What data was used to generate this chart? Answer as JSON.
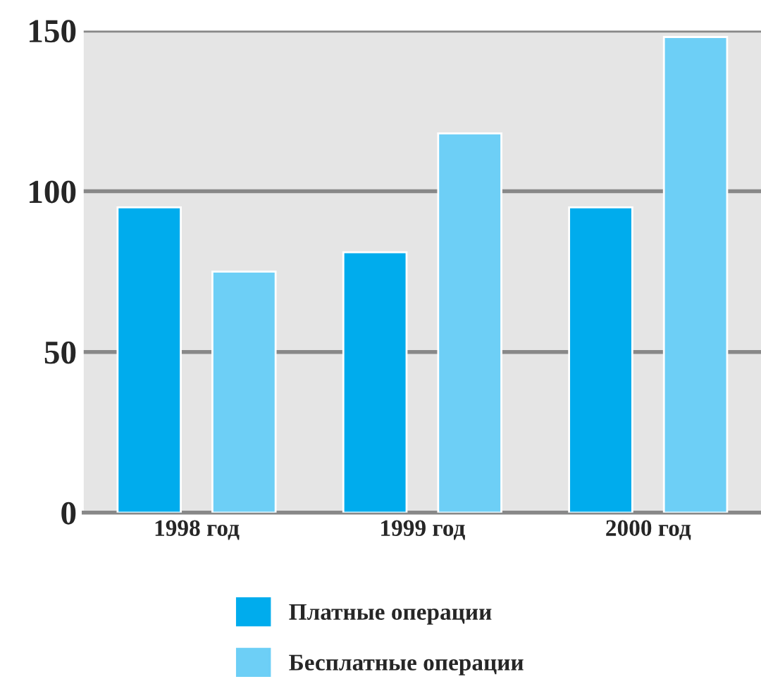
{
  "chart_data": {
    "type": "bar",
    "categories": [
      "1998 год",
      "1999 год",
      "2000 год"
    ],
    "series": [
      {
        "name": "Платные операции",
        "color": "#00aced",
        "values": [
          95,
          81,
          95
        ]
      },
      {
        "name": "Бесплатные операции",
        "color": "#6dcff6",
        "values": [
          75,
          118,
          148
        ]
      }
    ],
    "ylim": [
      0,
      150
    ],
    "yticks": [
      0,
      50,
      100,
      150
    ],
    "grid": "y",
    "legend": "bottom"
  }
}
